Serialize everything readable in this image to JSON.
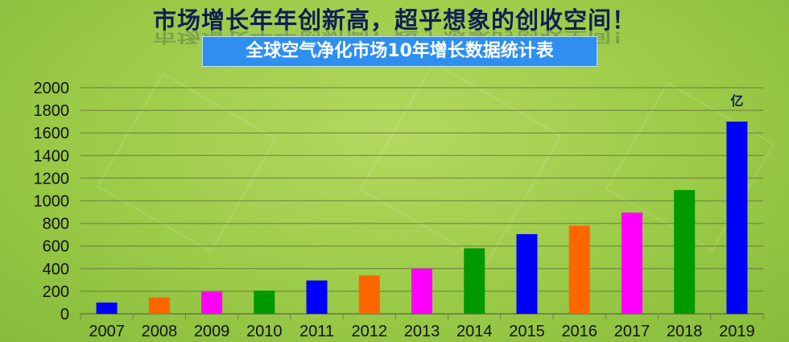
{
  "header": {
    "headline": "市场增长年年创新高，超乎想象的创收空间！",
    "subtitle": "全球空气净化市场10年增长数据统计表"
  },
  "chart_data": {
    "type": "bar",
    "categories": [
      "2007",
      "2008",
      "2009",
      "2010",
      "2011",
      "2012",
      "2013",
      "2014",
      "2015",
      "2016",
      "2017",
      "2018",
      "2019"
    ],
    "values": [
      100,
      145,
      195,
      205,
      295,
      340,
      400,
      580,
      705,
      780,
      895,
      1095,
      1700
    ],
    "colors": [
      "#0000ff",
      "#ff6600",
      "#ff00ff",
      "#009900",
      "#0000ff",
      "#ff6600",
      "#ff00ff",
      "#009900",
      "#0000ff",
      "#ff6600",
      "#ff00ff",
      "#009900",
      "#0000ff"
    ],
    "unit_label": "亿",
    "ylim": [
      0,
      2000
    ],
    "yticks": [
      "0",
      "200",
      "400",
      "600",
      "800",
      "1000",
      "1200",
      "1400",
      "1600",
      "1800",
      "2000"
    ],
    "grid": true
  }
}
